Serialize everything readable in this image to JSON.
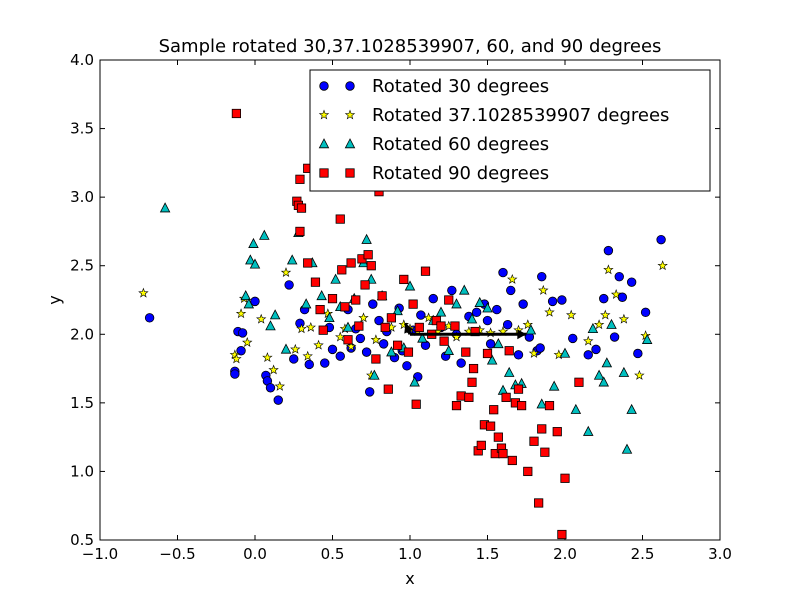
{
  "chart_data": {
    "type": "scatter",
    "title": "Sample rotated 30,37.1028539907, 60, and 90 degrees",
    "xlabel": "x",
    "ylabel": "y",
    "xlim": [
      -1.0,
      3.0
    ],
    "ylim": [
      0.5,
      4.0
    ],
    "xticks": [
      -1.0,
      -0.5,
      0.0,
      0.5,
      1.0,
      1.5,
      2.0,
      2.5,
      3.0
    ],
    "yticks": [
      0.5,
      1.0,
      1.5,
      2.0,
      2.5,
      3.0,
      3.5,
      4.0
    ],
    "xtick_labels": [
      "−1.0",
      "−0.5",
      "0.0",
      "0.5",
      "1.0",
      "1.5",
      "2.0",
      "2.5",
      "3.0"
    ],
    "ytick_labels": [
      "0.5",
      "1.0",
      "1.5",
      "2.0",
      "2.5",
      "3.0",
      "3.5",
      "4.0"
    ],
    "grid": false,
    "legend_position": "top-right",
    "series": [
      {
        "name": "Rotated 30 degrees",
        "marker": "circle",
        "color": "#0000ff",
        "points": [
          [
            -0.68,
            2.12
          ],
          [
            -0.13,
            1.73
          ],
          [
            -0.13,
            1.71
          ],
          [
            -0.11,
            2.02
          ],
          [
            -0.09,
            1.88
          ],
          [
            -0.08,
            2.01
          ],
          [
            0.0,
            2.24
          ],
          [
            0.07,
            1.7
          ],
          [
            0.08,
            1.66
          ],
          [
            0.1,
            1.61
          ],
          [
            0.15,
            1.52
          ],
          [
            0.22,
            2.36
          ],
          [
            0.25,
            1.82
          ],
          [
            0.29,
            2.08
          ],
          [
            0.32,
            2.18
          ],
          [
            0.35,
            1.78
          ],
          [
            0.45,
            1.79
          ],
          [
            0.48,
            2.05
          ],
          [
            0.5,
            1.89
          ],
          [
            0.55,
            1.84
          ],
          [
            0.6,
            2.18
          ],
          [
            0.62,
            1.9
          ],
          [
            0.65,
            2.04
          ],
          [
            0.68,
            1.97
          ],
          [
            0.72,
            1.87
          ],
          [
            0.74,
            1.58
          ],
          [
            0.76,
            2.22
          ],
          [
            0.8,
            2.1
          ],
          [
            0.83,
            1.93
          ],
          [
            0.85,
            2.02
          ],
          [
            0.9,
            1.83
          ],
          [
            0.93,
            2.19
          ],
          [
            0.95,
            1.88
          ],
          [
            0.98,
            1.77
          ],
          [
            1.02,
            2.03
          ],
          [
            1.05,
            1.69
          ],
          [
            1.07,
            2.14
          ],
          [
            1.1,
            1.92
          ],
          [
            1.15,
            2.26
          ],
          [
            1.2,
            2.05
          ],
          [
            1.23,
            1.84
          ],
          [
            1.27,
            2.32
          ],
          [
            1.3,
            2.0
          ],
          [
            1.33,
            1.79
          ],
          [
            1.38,
            2.13
          ],
          [
            1.43,
            2.16
          ],
          [
            1.48,
            2.22
          ],
          [
            1.5,
            2.1
          ],
          [
            1.52,
            1.93
          ],
          [
            1.56,
            2.18
          ],
          [
            1.6,
            2.45
          ],
          [
            1.63,
            2.07
          ],
          [
            1.65,
            2.32
          ],
          [
            1.7,
            1.85
          ],
          [
            1.73,
            2.22
          ],
          [
            1.77,
            1.98
          ],
          [
            1.82,
            1.88
          ],
          [
            1.84,
            1.9
          ],
          [
            1.85,
            2.42
          ],
          [
            1.92,
            2.24
          ],
          [
            1.98,
            2.25
          ],
          [
            2.05,
            1.97
          ],
          [
            2.15,
            1.85
          ],
          [
            2.2,
            1.89
          ],
          [
            2.25,
            2.26
          ],
          [
            2.28,
            2.61
          ],
          [
            2.32,
            1.98
          ],
          [
            2.35,
            2.42
          ],
          [
            2.37,
            2.27
          ],
          [
            2.43,
            2.38
          ],
          [
            2.47,
            1.86
          ],
          [
            2.52,
            2.16
          ],
          [
            2.62,
            2.69
          ]
        ]
      },
      {
        "name": "Rotated 37.1028539907 degrees",
        "marker": "star",
        "color": "#ffff00",
        "points": [
          [
            -0.72,
            2.3
          ],
          [
            -0.13,
            1.85
          ],
          [
            -0.12,
            1.82
          ],
          [
            -0.09,
            2.15
          ],
          [
            -0.07,
            2.26
          ],
          [
            -0.05,
            1.94
          ],
          [
            0.04,
            2.11
          ],
          [
            0.08,
            1.83
          ],
          [
            0.12,
            1.74
          ],
          [
            0.16,
            1.62
          ],
          [
            0.2,
            2.45
          ],
          [
            0.26,
            1.89
          ],
          [
            0.3,
            2.04
          ],
          [
            0.34,
            1.84
          ],
          [
            0.36,
            2.05
          ],
          [
            0.41,
            1.92
          ],
          [
            0.47,
            2.15
          ],
          [
            0.55,
            1.98
          ],
          [
            0.58,
            2.04
          ],
          [
            0.62,
            1.91
          ],
          [
            0.7,
            2.12
          ],
          [
            0.75,
            1.7
          ],
          [
            0.78,
            1.96
          ],
          [
            0.88,
            2.05
          ],
          [
            0.96,
            2.07
          ],
          [
            1.0,
            2.04
          ],
          [
            1.05,
            2.02
          ],
          [
            1.12,
            2.12
          ],
          [
            1.18,
            2.02
          ],
          [
            1.25,
            2.06
          ],
          [
            1.3,
            1.98
          ],
          [
            1.38,
            2.02
          ],
          [
            1.45,
            2.03
          ],
          [
            1.52,
            2.01
          ],
          [
            1.6,
            2.02
          ],
          [
            1.66,
            2.4
          ],
          [
            1.7,
            2.03
          ],
          [
            1.76,
            2.07
          ],
          [
            1.8,
            1.86
          ],
          [
            1.86,
            2.32
          ],
          [
            1.9,
            2.16
          ],
          [
            1.96,
            1.85
          ],
          [
            2.04,
            2.14
          ],
          [
            2.15,
            1.95
          ],
          [
            2.22,
            2.07
          ],
          [
            2.26,
            2.14
          ],
          [
            2.28,
            2.47
          ],
          [
            2.33,
            2.29
          ],
          [
            2.38,
            2.11
          ],
          [
            2.48,
            1.7
          ],
          [
            2.52,
            1.99
          ],
          [
            2.63,
            2.5
          ]
        ]
      },
      {
        "name": "Rotated 60 degrees",
        "marker": "triangle",
        "color": "#00bfbf",
        "points": [
          [
            -0.58,
            2.92
          ],
          [
            -0.06,
            2.28
          ],
          [
            -0.04,
            2.22
          ],
          [
            -0.03,
            2.54
          ],
          [
            -0.01,
            2.66
          ],
          [
            0.0,
            2.51
          ],
          [
            0.06,
            2.72
          ],
          [
            0.1,
            2.06
          ],
          [
            0.13,
            2.14
          ],
          [
            0.2,
            1.89
          ],
          [
            0.24,
            2.54
          ],
          [
            0.28,
            2.74
          ],
          [
            0.33,
            2.22
          ],
          [
            0.37,
            2.52
          ],
          [
            0.43,
            2.28
          ],
          [
            0.48,
            2.12
          ],
          [
            0.52,
            2.4
          ],
          [
            0.55,
            2.2
          ],
          [
            0.6,
            2.05
          ],
          [
            0.64,
            2.26
          ],
          [
            0.7,
            2.52
          ],
          [
            0.72,
            2.69
          ],
          [
            0.75,
            2.4
          ],
          [
            0.77,
            1.7
          ],
          [
            0.82,
            2.28
          ],
          [
            0.88,
            1.87
          ],
          [
            0.92,
            2.17
          ],
          [
            0.96,
            1.9
          ],
          [
            1.0,
            2.35
          ],
          [
            1.03,
            1.65
          ],
          [
            1.08,
            1.97
          ],
          [
            1.15,
            2.1
          ],
          [
            1.2,
            2.16
          ],
          [
            1.25,
            1.88
          ],
          [
            1.3,
            2.22
          ],
          [
            1.35,
            2.32
          ],
          [
            1.4,
            2.11
          ],
          [
            1.45,
            2.23
          ],
          [
            1.5,
            2.19
          ],
          [
            1.53,
            1.81
          ],
          [
            1.57,
            1.93
          ],
          [
            1.6,
            1.59
          ],
          [
            1.64,
            1.72
          ],
          [
            1.68,
            1.63
          ],
          [
            1.72,
            1.64
          ],
          [
            1.78,
            2.03
          ],
          [
            1.85,
            1.49
          ],
          [
            1.93,
            1.62
          ],
          [
            2.0,
            1.86
          ],
          [
            2.07,
            1.45
          ],
          [
            2.15,
            1.29
          ],
          [
            2.18,
            2.04
          ],
          [
            2.22,
            1.7
          ],
          [
            2.25,
            1.65
          ],
          [
            2.27,
            1.79
          ],
          [
            2.3,
            2.07
          ],
          [
            2.38,
            1.72
          ],
          [
            2.4,
            1.16
          ],
          [
            2.43,
            1.45
          ],
          [
            2.53,
            1.96
          ]
        ]
      },
      {
        "name": "Rotated 90 degrees",
        "marker": "square",
        "color": "#ff0000",
        "points": [
          [
            -0.12,
            3.61
          ],
          [
            0.27,
            2.97
          ],
          [
            0.28,
            2.94
          ],
          [
            0.29,
            3.13
          ],
          [
            0.3,
            2.92
          ],
          [
            0.34,
            3.21
          ],
          [
            0.29,
            2.75
          ],
          [
            0.34,
            2.52
          ],
          [
            0.39,
            2.38
          ],
          [
            0.42,
            2.18
          ],
          [
            0.44,
            2.03
          ],
          [
            0.5,
            2.26
          ],
          [
            0.55,
            2.84
          ],
          [
            0.56,
            2.47
          ],
          [
            0.58,
            2.2
          ],
          [
            0.6,
            1.96
          ],
          [
            0.62,
            2.52
          ],
          [
            0.65,
            2.25
          ],
          [
            0.67,
            2.06
          ],
          [
            0.69,
            2.55
          ],
          [
            0.71,
            2.36
          ],
          [
            0.73,
            2.58
          ],
          [
            0.75,
            2.5
          ],
          [
            0.78,
            1.82
          ],
          [
            0.8,
            3.04
          ],
          [
            0.82,
            2.28
          ],
          [
            0.84,
            2.05
          ],
          [
            0.86,
            1.6
          ],
          [
            0.88,
            2.12
          ],
          [
            0.92,
            1.92
          ],
          [
            0.96,
            2.4
          ],
          [
            0.99,
            1.87
          ],
          [
            1.02,
            2.22
          ],
          [
            1.04,
            1.49
          ],
          [
            1.06,
            2.05
          ],
          [
            1.1,
            2.46
          ],
          [
            1.14,
            2.0
          ],
          [
            1.17,
            2.1
          ],
          [
            1.2,
            2.06
          ],
          [
            1.22,
            1.95
          ],
          [
            1.25,
            2.25
          ],
          [
            1.29,
            2.06
          ],
          [
            1.3,
            1.48
          ],
          [
            1.33,
            1.55
          ],
          [
            1.36,
            1.87
          ],
          [
            1.38,
            1.54
          ],
          [
            1.4,
            1.65
          ],
          [
            1.41,
            1.75
          ],
          [
            1.42,
            2.02
          ],
          [
            1.44,
            1.15
          ],
          [
            1.46,
            1.19
          ],
          [
            1.48,
            1.34
          ],
          [
            1.5,
            1.86
          ],
          [
            1.52,
            1.33
          ],
          [
            1.54,
            1.45
          ],
          [
            1.55,
            1.13
          ],
          [
            1.57,
            1.25
          ],
          [
            1.59,
            1.17
          ],
          [
            1.6,
            1.13
          ],
          [
            1.62,
            1.54
          ],
          [
            1.64,
            1.88
          ],
          [
            1.66,
            1.08
          ],
          [
            1.68,
            1.5
          ],
          [
            1.7,
            1.6
          ],
          [
            1.72,
            1.48
          ],
          [
            1.76,
            1.0
          ],
          [
            1.8,
            1.22
          ],
          [
            1.83,
            0.77
          ],
          [
            1.85,
            1.31
          ],
          [
            1.87,
            1.14
          ],
          [
            1.9,
            1.48
          ],
          [
            1.95,
            1.29
          ],
          [
            1.98,
            0.54
          ],
          [
            2.0,
            0.95
          ],
          [
            2.09,
            1.65
          ]
        ]
      }
    ],
    "arrows": [
      {
        "from": [
          1.0,
          2.0
        ],
        "to": [
          1.75,
          2.0
        ],
        "color": "#000000"
      },
      {
        "from": [
          1.0,
          2.0
        ],
        "to": [
          0.97,
          2.08
        ],
        "color": "#000000"
      }
    ]
  }
}
